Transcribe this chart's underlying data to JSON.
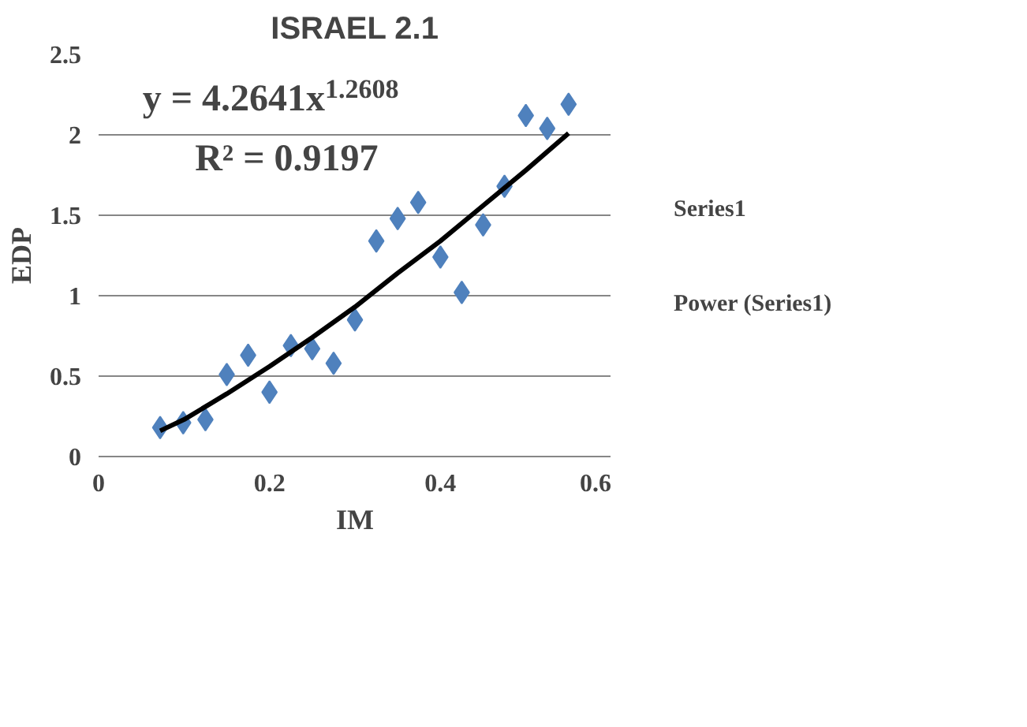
{
  "chart_data": {
    "type": "scatter",
    "title": "ISRAEL 2.1",
    "xlabel": "IM",
    "ylabel": "EDP",
    "annotations": [
      "y = 4.2641x$^{1.2608}$",
      "R² = 0.9197"
    ],
    "xlim": [
      0,
      0.6
    ],
    "xticks": [
      0,
      0.2,
      0.4,
      0.6
    ],
    "ylim": [
      0,
      2.5
    ],
    "yticks": [
      0,
      0.5,
      1,
      1.5,
      2,
      2.5
    ],
    "grid": "y",
    "legend": "right",
    "marker": "diamond",
    "series": [
      {
        "name": "Series1",
        "color": "#4f81bd",
        "x": [
          0.072,
          0.099,
          0.125,
          0.15,
          0.175,
          0.2,
          0.225,
          0.25,
          0.275,
          0.3,
          0.325,
          0.35,
          0.374,
          0.4,
          0.425,
          0.45,
          0.475,
          0.5,
          0.525,
          0.55
        ],
        "values": [
          0.18,
          0.21,
          0.23,
          0.51,
          0.63,
          0.4,
          0.69,
          0.67,
          0.58,
          0.85,
          1.34,
          1.48,
          1.58,
          1.24,
          1.02,
          1.44,
          1.68,
          2.12,
          2.04,
          2.19
        ]
      },
      {
        "name": "Power (Series1)",
        "type": "line",
        "color": "#000000",
        "marker": "none",
        "line_style": "solid",
        "x": [
          0.072,
          0.1,
          0.15,
          0.2,
          0.25,
          0.3,
          0.35,
          0.4,
          0.45,
          0.5,
          0.55
        ],
        "values": [
          0.16,
          0.23,
          0.39,
          0.56,
          0.74,
          0.93,
          1.14,
          1.34,
          1.56,
          1.78,
          2.01
        ]
      }
    ]
  }
}
